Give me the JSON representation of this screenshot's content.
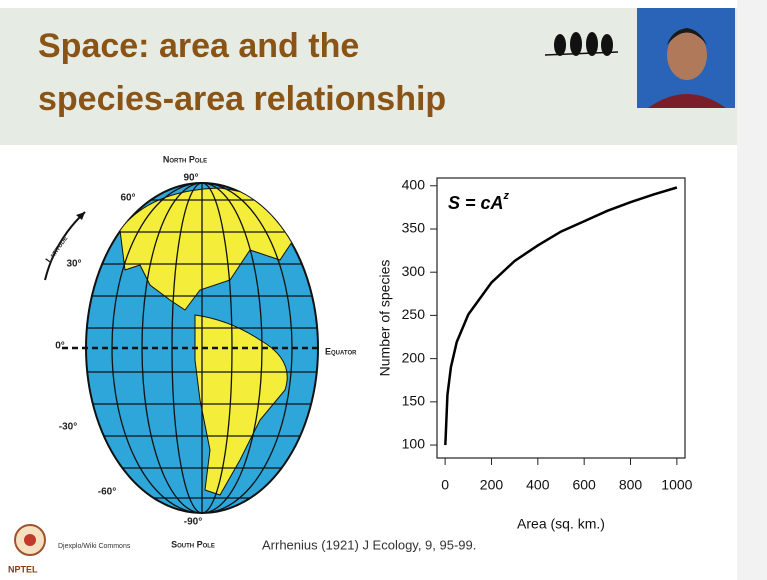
{
  "slide": {
    "title": [
      "Space: area and the",
      "species-area relationship"
    ]
  },
  "globe": {
    "north_pole": "North Pole",
    "south_pole": "South Pole",
    "equator": "Equator",
    "latitude": "Latitude",
    "lat_labels": [
      "90°",
      "60°",
      "30°",
      "0°",
      "-30°",
      "-60°",
      "-90°"
    ]
  },
  "chart_data": {
    "type": "line",
    "annotation": {
      "base": "S = cA",
      "exponent": "z"
    },
    "x_label": "Area (sq. km.)",
    "y_label": "Number of species",
    "x": [
      1,
      10,
      25,
      50,
      100,
      200,
      300,
      400,
      500,
      600,
      700,
      800,
      900,
      1000
    ],
    "values": [
      100,
      158,
      190,
      219,
      251,
      288,
      313,
      331,
      347,
      359,
      371,
      381,
      390,
      398
    ],
    "color": "#000000",
    "xlim": [
      -35,
      1035
    ],
    "xticks": [
      0,
      200,
      400,
      600,
      800,
      1000
    ],
    "ylim": [
      85,
      409
    ],
    "yticks": [
      100,
      150,
      200,
      250,
      300,
      350,
      400
    ]
  },
  "credits": {
    "image": "Djexplo/Wiki Commons",
    "citation": "Arrhenius (1921) J Ecology, 9, 95-99.",
    "logo": "NPTEL"
  }
}
